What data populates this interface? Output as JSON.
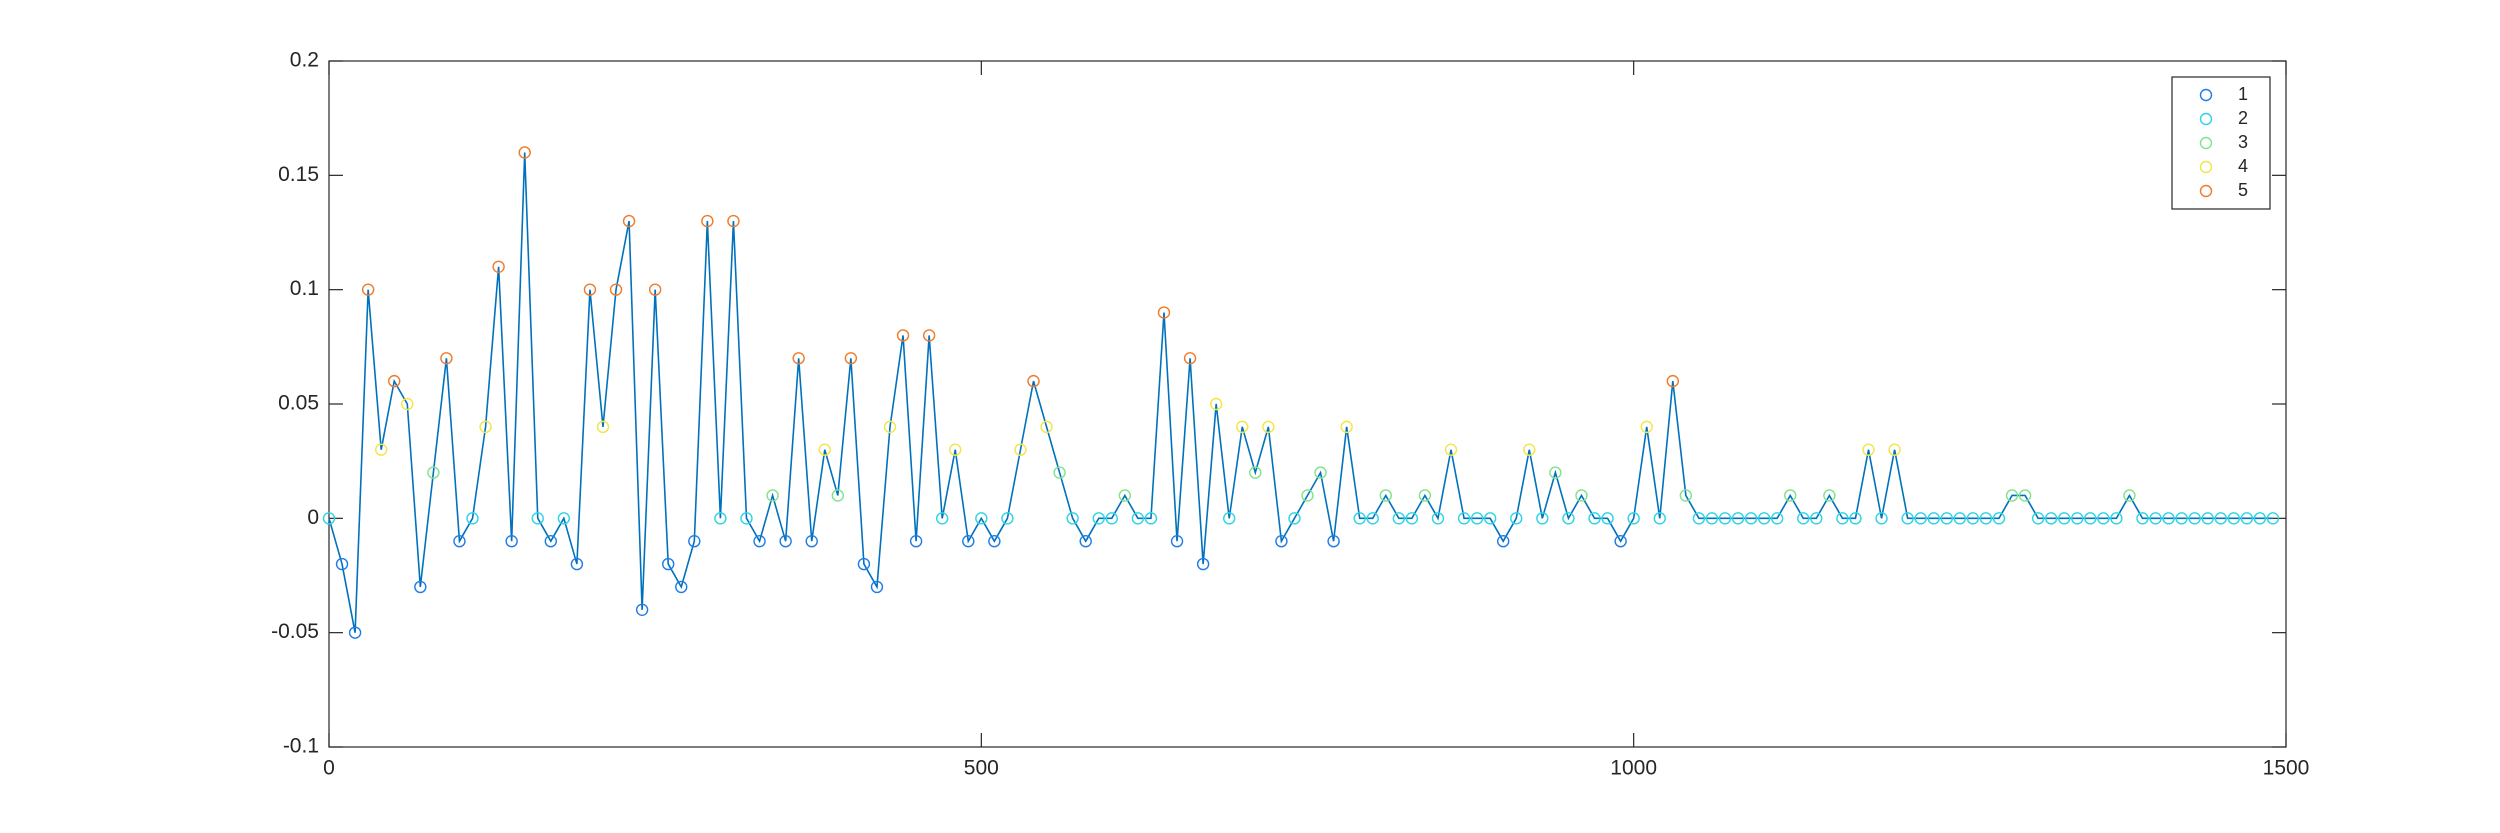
{
  "chart_data": {
    "type": "scatter",
    "x": [
      0,
      10,
      20,
      30,
      40,
      50,
      60,
      70,
      80,
      90,
      100,
      110,
      120,
      130,
      140,
      150,
      160,
      170,
      180,
      190,
      200,
      210,
      220,
      230,
      240,
      250,
      260,
      270,
      280,
      290,
      300,
      310,
      320,
      330,
      340,
      350,
      360,
      370,
      380,
      390,
      400,
      410,
      420,
      430,
      440,
      450,
      460,
      470,
      480,
      490,
      500,
      510,
      520,
      530,
      540,
      550,
      560,
      570,
      580,
      590,
      600,
      610,
      620,
      630,
      640,
      650,
      660,
      670,
      680,
      690,
      700,
      710,
      720,
      730,
      740,
      750,
      760,
      770,
      780,
      790,
      800,
      810,
      820,
      830,
      840,
      850,
      860,
      870,
      880,
      890,
      900,
      910,
      920,
      930,
      940,
      950,
      960,
      970,
      980,
      990,
      1000,
      1010,
      1020,
      1030,
      1040,
      1050,
      1060,
      1070,
      1080,
      1090,
      1100,
      1110,
      1120,
      1130,
      1140,
      1150,
      1160,
      1170,
      1180,
      1190,
      1200,
      1210,
      1220,
      1230,
      1240,
      1250,
      1260,
      1270,
      1280,
      1290,
      1300,
      1310,
      1320,
      1330,
      1340,
      1350,
      1360,
      1370,
      1380,
      1390,
      1400,
      1410,
      1420,
      1430,
      1440,
      1450,
      1460,
      1470,
      1480,
      1490
    ],
    "values": [
      0,
      -0.02,
      -0.05,
      0.1,
      0.03,
      0.06,
      0.05,
      -0.03,
      0.02,
      0.07,
      -0.01,
      0,
      0.04,
      0.11,
      -0.01,
      0.16,
      0,
      -0.01,
      0,
      -0.02,
      0.1,
      0.04,
      0.1,
      0.13,
      -0.04,
      0.1,
      -0.02,
      -0.03,
      -0.01,
      0.13,
      0,
      0.13,
      0,
      -0.01,
      0.01,
      -0.01,
      0.07,
      -0.01,
      0.03,
      0.01,
      0.07,
      -0.02,
      -0.03,
      0.04,
      0.08,
      -0.01,
      0.08,
      0,
      0.03,
      -0.01,
      0,
      -0.01,
      0,
      0.03,
      0.06,
      0.04,
      0.02,
      0,
      -0.01,
      0,
      0,
      0.01,
      0,
      0,
      0.09,
      -0.01,
      0.07,
      -0.02,
      0.05,
      0,
      0.04,
      0.02,
      0.04,
      -0.01,
      0,
      0.01,
      0.02,
      -0.01,
      0.04,
      0,
      0,
      0.01,
      0,
      0,
      0.01,
      0,
      0.03,
      0,
      0,
      0,
      -0.01,
      0,
      0.03,
      0,
      0.02,
      0,
      0.01,
      0,
      0,
      -0.01,
      0,
      0.04,
      0,
      0.06,
      0.01,
      0,
      0,
      0,
      0,
      0,
      0,
      0,
      0.01,
      0,
      0,
      0.01,
      0,
      0,
      0.03,
      0,
      0.03,
      0,
      0,
      0,
      0,
      0,
      0,
      0,
      0,
      0.01,
      0.01,
      0,
      0,
      0,
      0,
      0,
      0,
      0,
      0.01,
      0,
      0,
      0,
      0,
      0,
      0,
      0,
      0,
      0,
      0,
      0
    ],
    "series_index": [
      1,
      0,
      0,
      4,
      3,
      4,
      3,
      0,
      2,
      4,
      0,
      1,
      3,
      4,
      0,
      4,
      1,
      0,
      1,
      0,
      4,
      3,
      4,
      4,
      0,
      4,
      0,
      0,
      0,
      4,
      1,
      4,
      1,
      0,
      2,
      0,
      4,
      0,
      3,
      2,
      4,
      0,
      0,
      3,
      4,
      0,
      4,
      1,
      3,
      0,
      1,
      0,
      1,
      3,
      4,
      3,
      2,
      1,
      0,
      1,
      1,
      2,
      1,
      1,
      4,
      0,
      4,
      0,
      3,
      1,
      3,
      2,
      3,
      0,
      1,
      2,
      2,
      0,
      3,
      1,
      1,
      2,
      1,
      1,
      2,
      1,
      3,
      1,
      1,
      1,
      0,
      1,
      3,
      1,
      2,
      1,
      2,
      1,
      1,
      0,
      1,
      3,
      1,
      4,
      2,
      1,
      1,
      1,
      1,
      1,
      1,
      1,
      2,
      1,
      1,
      2,
      1,
      1,
      3,
      1,
      3,
      1,
      1,
      1,
      1,
      1,
      1,
      1,
      1,
      2,
      2,
      1,
      1,
      1,
      1,
      1,
      1,
      1,
      2,
      1,
      1,
      1,
      1,
      1,
      1,
      1,
      1,
      1,
      1,
      1
    ],
    "line_color": "#0072bd",
    "series": [
      {
        "name": "1",
        "color": "#1f7be8"
      },
      {
        "name": "2",
        "color": "#2fd3e6"
      },
      {
        "name": "3",
        "color": "#7fe38a"
      },
      {
        "name": "4",
        "color": "#f2e545"
      },
      {
        "name": "5",
        "color": "#f07a2a"
      }
    ],
    "xlim": [
      0,
      1500
    ],
    "xticks": [
      0,
      500,
      1000,
      1500
    ],
    "ylim": [
      -0.1,
      0.2
    ],
    "yticks": [
      -0.1,
      -0.05,
      0,
      0.05,
      0.1,
      0.15,
      0.2
    ],
    "legend": "upper right"
  }
}
